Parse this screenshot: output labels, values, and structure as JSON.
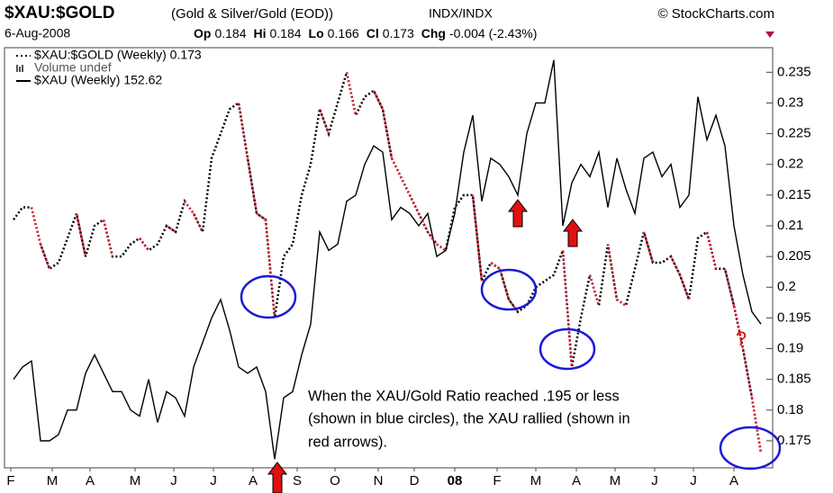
{
  "chart_data": {
    "type": "line",
    "title": "$XAU:$GOLD",
    "subtitle": "(Gold & Silver/Gold (EOD))",
    "exchange": "INDX/INDX",
    "source": "© StockCharts.com",
    "date": "6-Aug-2008",
    "quote": [
      {
        "label": "Op",
        "value": 0.184
      },
      {
        "label": "Hi",
        "value": 0.184
      },
      {
        "label": "Lo",
        "value": 0.166
      },
      {
        "label": "Cl",
        "value": 0.173
      },
      {
        "label": "Chg",
        "value": -0.004,
        "detail": "(-2.43%)"
      }
    ],
    "legend": [
      "$XAU:$GOLD (Weekly) 0.173",
      "Volume undef",
      "$XAU (Weekly) 152.62"
    ],
    "annotation": [
      "When the XAU/Gold Ratio reached .195 or less",
      "(shown in blue circles), the XAU rallied (shown in",
      "red arrows)."
    ],
    "question": "?",
    "xlim": [
      0,
      83
    ],
    "xticks": [
      {
        "value": -0.3,
        "label": "F"
      },
      {
        "value": 4.3,
        "label": "M"
      },
      {
        "value": 8.5,
        "label": "A"
      },
      {
        "value": 13.5,
        "label": "M"
      },
      {
        "value": 17.8,
        "label": "J"
      },
      {
        "value": 22.2,
        "label": "J"
      },
      {
        "value": 26.6,
        "label": "A"
      },
      {
        "value": 31.5,
        "label": "S"
      },
      {
        "value": 35.7,
        "label": "O"
      },
      {
        "value": 40.5,
        "label": "N"
      },
      {
        "value": 44.5,
        "label": "D"
      },
      {
        "value": 49,
        "label": "08"
      },
      {
        "value": 53.7,
        "label": "F"
      },
      {
        "value": 58,
        "label": "M"
      },
      {
        "value": 62.5,
        "label": "A"
      },
      {
        "value": 66.8,
        "label": "M"
      },
      {
        "value": 71.2,
        "label": "J"
      },
      {
        "value": 75.5,
        "label": "J"
      },
      {
        "value": 80,
        "label": "A"
      }
    ],
    "ylim": [
      0.1706,
      0.239
    ],
    "yticks": [
      0.175,
      0.18,
      0.185,
      0.19,
      0.195,
      0.2,
      0.205,
      0.21,
      0.215,
      0.22,
      0.225,
      0.23,
      0.235
    ],
    "series": [
      {
        "name": "$XAU:$GOLD",
        "color": "#000000",
        "down_color": "#e0203c",
        "dotted": true,
        "values": [
          0.211,
          0.213,
          0.213,
          0.207,
          0.203,
          0.204,
          0.208,
          0.212,
          0.205,
          0.21,
          0.211,
          0.205,
          0.205,
          0.207,
          0.208,
          0.206,
          0.207,
          0.21,
          0.209,
          0.214,
          0.212,
          0.209,
          0.221,
          0.225,
          0.229,
          0.23,
          0.221,
          0.212,
          0.211,
          0.195,
          0.205,
          0.207,
          0.215,
          0.22,
          0.229,
          0.225,
          0.23,
          0.235,
          0.228,
          0.231,
          0.232,
          0.229,
          0.221,
          0.218,
          0.215,
          0.212,
          0.209,
          0.207,
          0.206,
          0.213,
          0.215,
          0.215,
          0.201,
          0.204,
          0.203,
          0.198,
          0.196,
          0.197,
          0.2,
          0.201,
          0.202,
          0.206,
          0.187,
          0.195,
          0.202,
          0.197,
          0.207,
          0.198,
          0.197,
          0.203,
          0.209,
          0.204,
          0.204,
          0.205,
          0.202,
          0.198,
          0.208,
          0.209,
          0.203,
          0.203,
          0.197,
          0.19,
          0.182,
          0.173
        ]
      },
      {
        "name": "$XAU",
        "color": "#000000",
        "dotted": false,
        "values": [
          0.185,
          0.187,
          0.188,
          0.175,
          0.175,
          0.176,
          0.18,
          0.18,
          0.186,
          0.189,
          0.186,
          0.183,
          0.183,
          0.18,
          0.179,
          0.185,
          0.178,
          0.183,
          0.182,
          0.179,
          0.187,
          0.191,
          0.195,
          0.198,
          0.193,
          0.187,
          0.186,
          0.187,
          0.183,
          0.172,
          0.182,
          0.183,
          0.189,
          0.194,
          0.209,
          0.206,
          0.207,
          0.214,
          0.215,
          0.22,
          0.223,
          0.222,
          0.211,
          0.213,
          0.212,
          0.21,
          0.212,
          0.205,
          0.206,
          0.212,
          0.222,
          0.228,
          0.214,
          0.221,
          0.22,
          0.218,
          0.215,
          0.225,
          0.23,
          0.23,
          0.237,
          0.21,
          0.217,
          0.22,
          0.218,
          0.222,
          0.213,
          0.221,
          0.216,
          0.212,
          0.221,
          0.222,
          0.218,
          0.22,
          0.213,
          0.215,
          0.231,
          0.224,
          0.228,
          0.223,
          0.21,
          0.202,
          0.196,
          0.194
        ]
      }
    ]
  }
}
